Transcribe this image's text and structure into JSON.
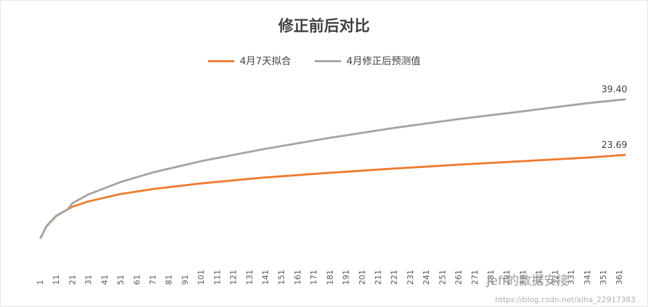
{
  "chart_data": {
    "type": "line",
    "title": "修正前后对比",
    "xlabel": "",
    "ylabel": "",
    "x_ticks": [
      "1",
      "11",
      "21",
      "31",
      "41",
      "51",
      "61",
      "71",
      "81",
      "91",
      "101",
      "111",
      "121",
      "131",
      "141",
      "151",
      "161",
      "171",
      "181",
      "191",
      "201",
      "211",
      "221",
      "231",
      "241",
      "251",
      "261",
      "271",
      "281",
      "291",
      "301",
      "311",
      "321",
      "331",
      "341",
      "351",
      "361"
    ],
    "x_range": [
      1,
      365
    ],
    "y_range": [
      0,
      45
    ],
    "grid": false,
    "legend_position": "top",
    "series": [
      {
        "name": "4月7天拟合",
        "color": "#ED7D31",
        "x": [
          1,
          5,
          11,
          21,
          31,
          51,
          71,
          101,
          141,
          181,
          221,
          261,
          301,
          341,
          365
        ],
        "y": [
          0.0,
          3.5,
          6.4,
          9.0,
          10.5,
          12.6,
          14.0,
          15.6,
          17.3,
          18.6,
          19.8,
          20.9,
          21.9,
          22.9,
          23.69
        ]
      },
      {
        "name": "4月修正后预测值",
        "color": "#A5A5A5",
        "x": [
          1,
          5,
          11,
          18,
          21,
          31,
          51,
          71,
          101,
          141,
          181,
          221,
          261,
          301,
          341,
          365
        ],
        "y": [
          0.0,
          3.6,
          6.5,
          8.2,
          10.0,
          12.5,
          16.0,
          18.7,
          21.9,
          25.4,
          28.5,
          31.3,
          33.8,
          36.0,
          38.3,
          39.4
        ]
      }
    ],
    "end_labels": [
      "23.69",
      "39.40"
    ]
  },
  "watermark": "https://blog.csdn.net/alha_22917383",
  "wechat_overlay": "Jeff的数据安接"
}
